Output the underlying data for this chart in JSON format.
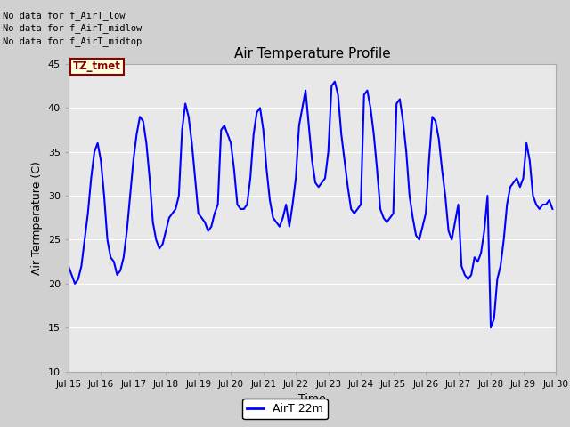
{
  "title": "Air Temperature Profile",
  "xlabel": "Time",
  "ylabel": "Air Termperature (C)",
  "ylim": [
    10,
    45
  ],
  "xlim_days": [
    15,
    30
  ],
  "line_color": "blue",
  "line_width": 1.5,
  "legend_label": "AirT 22m",
  "annotations": [
    "No data for f_AirT_low",
    "No data for f_AirT_midlow",
    "No data for f_AirT_midtop"
  ],
  "tz_label": "TZ_tmet",
  "x_tick_labels": [
    "Jul 15",
    "Jul 16",
    "Jul 17",
    "Jul 18",
    "Jul 19",
    "Jul 20",
    "Jul 21",
    "Jul 22",
    "Jul 23",
    "Jul 24",
    "Jul 25",
    "Jul 26",
    "Jul 27",
    "Jul 28",
    "Jul 29",
    "Jul 30"
  ],
  "y_ticks": [
    10,
    15,
    20,
    25,
    30,
    35,
    40,
    45
  ],
  "data_x": [
    15.0,
    15.1,
    15.2,
    15.3,
    15.4,
    15.5,
    15.6,
    15.7,
    15.8,
    15.9,
    16.0,
    16.1,
    16.2,
    16.3,
    16.4,
    16.5,
    16.6,
    16.7,
    16.8,
    16.9,
    17.0,
    17.1,
    17.2,
    17.3,
    17.4,
    17.5,
    17.6,
    17.7,
    17.8,
    17.9,
    18.0,
    18.1,
    18.2,
    18.3,
    18.4,
    18.5,
    18.6,
    18.7,
    18.8,
    18.9,
    19.0,
    19.1,
    19.2,
    19.3,
    19.4,
    19.5,
    19.6,
    19.7,
    19.8,
    19.9,
    20.0,
    20.1,
    20.2,
    20.3,
    20.4,
    20.5,
    20.6,
    20.7,
    20.8,
    20.9,
    21.0,
    21.1,
    21.2,
    21.3,
    21.4,
    21.5,
    21.6,
    21.7,
    21.8,
    21.9,
    22.0,
    22.1,
    22.2,
    22.3,
    22.4,
    22.5,
    22.6,
    22.7,
    22.8,
    22.9,
    23.0,
    23.1,
    23.2,
    23.3,
    23.4,
    23.5,
    23.6,
    23.7,
    23.8,
    23.9,
    24.0,
    24.1,
    24.2,
    24.3,
    24.4,
    24.5,
    24.6,
    24.7,
    24.8,
    24.9,
    25.0,
    25.1,
    25.2,
    25.3,
    25.4,
    25.5,
    25.6,
    25.7,
    25.8,
    25.9,
    26.0,
    26.1,
    26.2,
    26.3,
    26.4,
    26.5,
    26.6,
    26.7,
    26.8,
    26.9,
    27.0,
    27.1,
    27.2,
    27.3,
    27.4,
    27.5,
    27.6,
    27.7,
    27.8,
    27.9,
    28.0,
    28.1,
    28.2,
    28.3,
    28.4,
    28.5,
    28.6,
    28.7,
    28.8,
    28.9,
    29.0,
    29.1,
    29.2,
    29.3,
    29.4,
    29.5,
    29.6,
    29.7,
    29.8,
    29.9
  ],
  "data_y": [
    22.0,
    21.0,
    20.0,
    20.5,
    22.0,
    25.0,
    28.0,
    32.0,
    35.0,
    36.0,
    34.0,
    30.0,
    25.0,
    23.0,
    22.5,
    21.0,
    21.5,
    23.0,
    26.0,
    30.0,
    34.0,
    37.0,
    39.0,
    38.5,
    36.0,
    32.0,
    27.0,
    25.0,
    24.0,
    24.5,
    26.0,
    27.5,
    28.0,
    28.5,
    30.0,
    37.5,
    40.5,
    39.0,
    36.0,
    32.0,
    28.0,
    27.5,
    27.0,
    26.0,
    26.5,
    28.0,
    29.0,
    37.5,
    38.0,
    37.0,
    36.0,
    33.0,
    29.0,
    28.5,
    28.5,
    29.0,
    32.0,
    37.0,
    39.5,
    40.0,
    37.5,
    33.0,
    29.5,
    27.5,
    27.0,
    26.5,
    27.5,
    29.0,
    26.5,
    29.0,
    32.0,
    38.0,
    40.0,
    42.0,
    38.0,
    34.0,
    31.5,
    31.0,
    31.5,
    32.0,
    35.0,
    42.5,
    43.0,
    41.5,
    37.0,
    34.0,
    31.0,
    28.5,
    28.0,
    28.5,
    29.0,
    41.5,
    42.0,
    40.0,
    37.0,
    33.0,
    28.5,
    27.5,
    27.0,
    27.5,
    28.0,
    40.5,
    41.0,
    38.5,
    35.0,
    30.0,
    27.5,
    25.5,
    25.0,
    26.5,
    28.0,
    34.0,
    39.0,
    38.5,
    36.5,
    33.0,
    30.0,
    26.0,
    25.0,
    27.0,
    29.0,
    22.0,
    21.0,
    20.5,
    21.0,
    23.0,
    22.5,
    23.5,
    26.0,
    30.0,
    15.0,
    16.0,
    20.5,
    22.0,
    25.0,
    29.0,
    31.0,
    31.5,
    32.0,
    31.0,
    32.0,
    36.0,
    34.0,
    30.0,
    29.0,
    28.5,
    29.0,
    29.0,
    29.5,
    28.5
  ]
}
